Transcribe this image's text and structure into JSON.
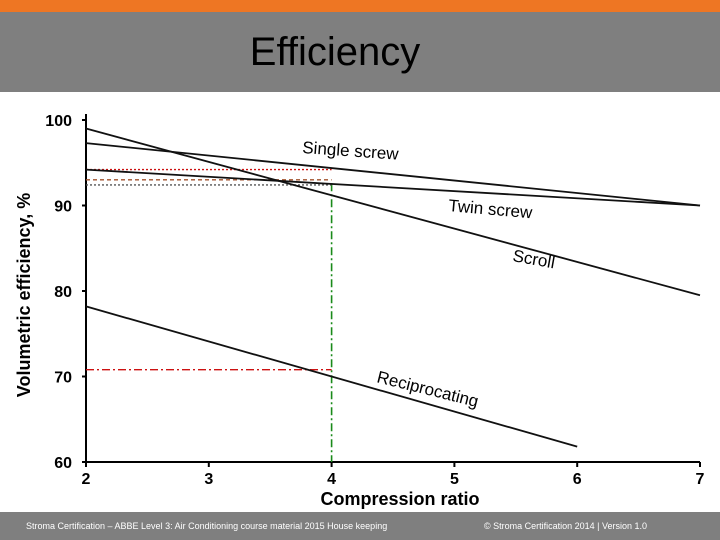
{
  "slide": {
    "title": "Efficiency"
  },
  "footer": {
    "left": "Stroma Certification – ABBE Level 3: Air Conditioning course material 2015 House keeping",
    "right": "© Stroma Certification 2014 |   Version 1.0"
  },
  "colors": {
    "accent": "#ee7623",
    "bar": "#7f7f7f",
    "guide_green": "#1a8a1a",
    "guide_red": "#cc1111"
  },
  "chart_data": {
    "type": "line",
    "xlabel": "Compression   ratio",
    "ylabel": "Volumetric efficiency, %",
    "xlim": [
      2,
      7
    ],
    "ylim": [
      60,
      100
    ],
    "xticks": [
      "2",
      "3",
      "4",
      "5",
      "6",
      "7"
    ],
    "yticks": [
      "100",
      "90",
      "80",
      "70",
      "60"
    ],
    "series": [
      {
        "name": "Single screw",
        "x": [
          2,
          7
        ],
        "y": [
          97.3,
          90.0
        ]
      },
      {
        "name": "Twin screw",
        "x": [
          2,
          7
        ],
        "y": [
          94.2,
          90.0
        ]
      },
      {
        "name": "Scroll",
        "x": [
          2,
          7
        ],
        "y": [
          99.0,
          79.5
        ]
      },
      {
        "name": "Reciprocating",
        "x": [
          2,
          6
        ],
        "y": [
          78.2,
          61.8
        ]
      }
    ],
    "guides": [
      {
        "type": "vertical",
        "x": 4,
        "color": "green",
        "style": "dash-dot"
      },
      {
        "type": "horizontal",
        "y": 94.2,
        "x_to": 4,
        "color": "red",
        "style": "dotted"
      },
      {
        "type": "horizontal",
        "y": 93.0,
        "x_to": 4,
        "color": "brown",
        "style": "dashed"
      },
      {
        "type": "horizontal",
        "y": 92.4,
        "x_to": 4,
        "color": "gray",
        "style": "dotted"
      },
      {
        "type": "horizontal",
        "y": 70.8,
        "x_to": 4,
        "color": "red",
        "style": "dash-dot"
      }
    ]
  }
}
